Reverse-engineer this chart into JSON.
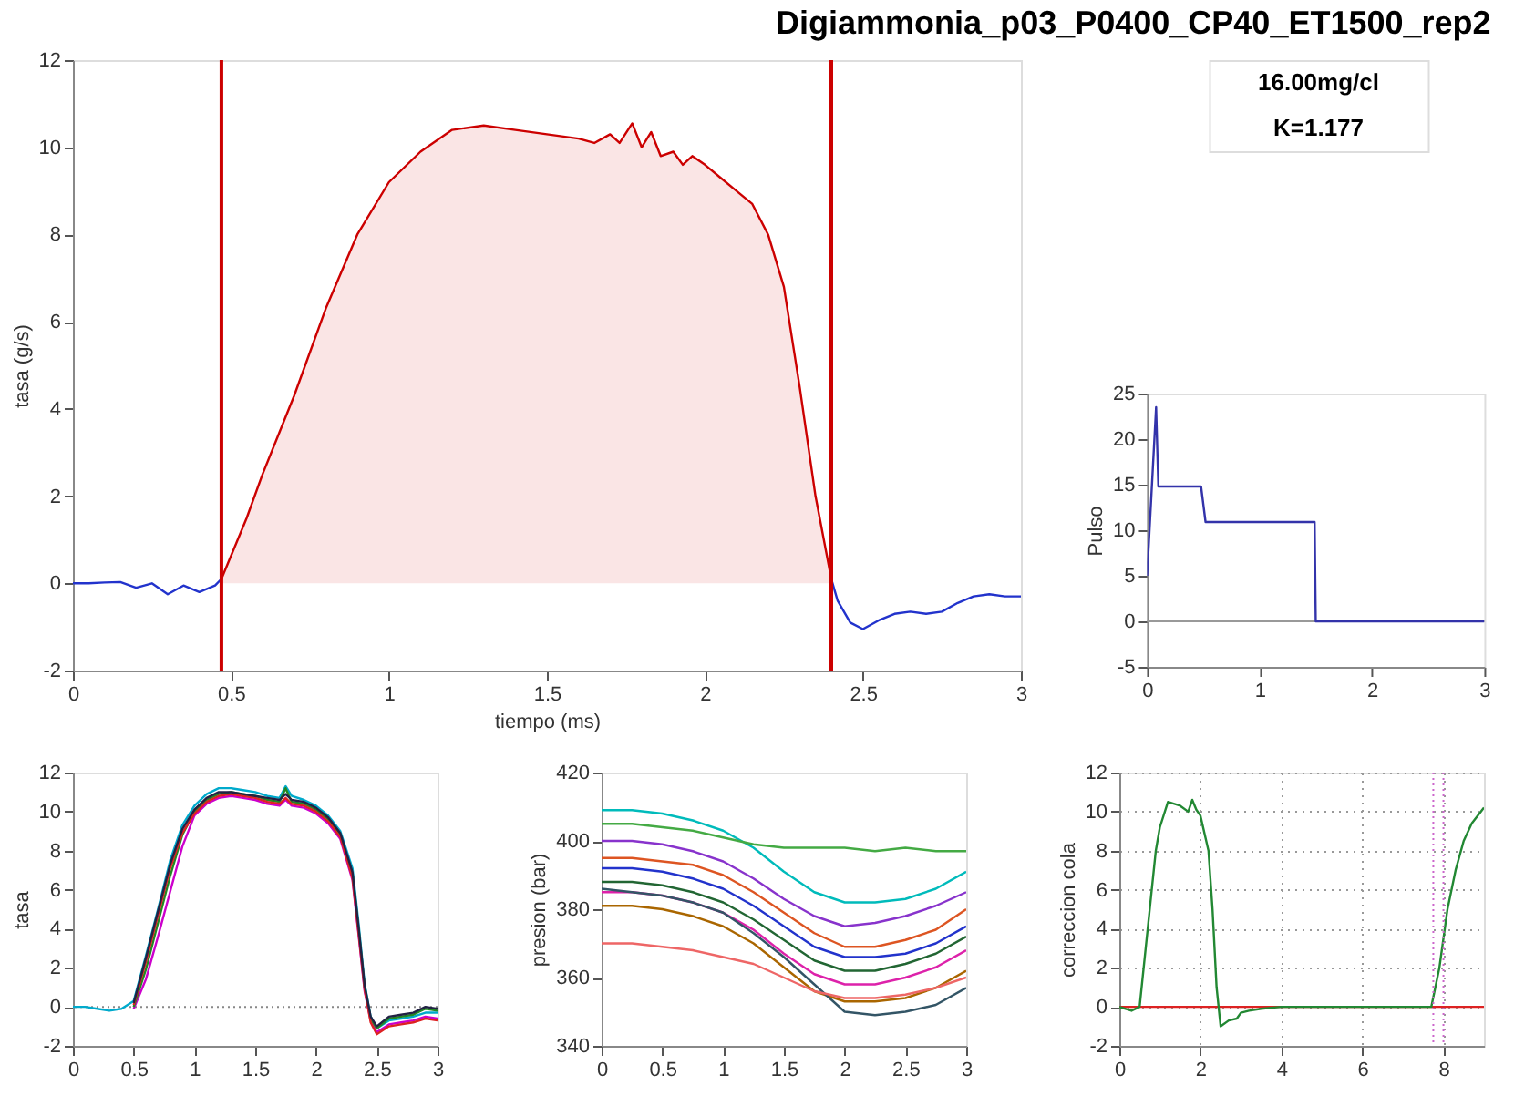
{
  "chart_data": [
    {
      "type": "line",
      "title": "Digiammonia_p03_P0400_CP40_ET1500_rep2",
      "xlabel": "tiempo (ms)",
      "ylabel": "tasa (g/s)",
      "xlim": [
        0,
        3
      ],
      "ylim": [
        -2,
        12
      ],
      "xticks": [
        0,
        0.5,
        1,
        1.5,
        2,
        2.5,
        3
      ],
      "yticks": [
        -2,
        0,
        2,
        4,
        6,
        8,
        10,
        12
      ],
      "grid": false,
      "annotations": [
        "16.00mg/cl",
        "K=1.177"
      ],
      "ref_lines": [
        {
          "axis": "x",
          "value": 0.47,
          "color": "#cc0000"
        },
        {
          "axis": "x",
          "value": 2.4,
          "color": "#cc0000"
        }
      ],
      "series": [
        {
          "type": "line",
          "color": "#2233cc",
          "x": [
            0,
            0.05,
            0.1,
            0.15,
            0.2,
            0.25,
            0.3,
            0.35,
            0.4,
            0.45,
            0.47,
            1.5,
            2.4,
            2.42,
            2.46,
            2.5,
            2.55,
            2.6,
            2.65,
            2.7,
            2.75,
            2.8,
            2.85,
            2.9,
            2.95,
            3
          ],
          "values": [
            0,
            0,
            0.02,
            0.03,
            -0.1,
            0,
            -0.25,
            -0.05,
            -0.2,
            -0.05,
            0.1,
            null,
            0.1,
            -0.4,
            -0.9,
            -1.05,
            -0.85,
            -0.7,
            -0.65,
            -0.7,
            -0.65,
            -0.45,
            -0.3,
            -0.25,
            -0.3,
            -0.3
          ]
        },
        {
          "type": "area",
          "color": "#cc0000",
          "x": [
            0.47,
            0.55,
            0.6,
            0.7,
            0.8,
            0.9,
            1.0,
            1.1,
            1.2,
            1.3,
            1.4,
            1.5,
            1.6,
            1.65,
            1.7,
            1.73,
            1.77,
            1.8,
            1.83,
            1.86,
            1.9,
            1.93,
            1.96,
            2.0,
            2.05,
            2.1,
            2.15,
            2.2,
            2.25,
            2.3,
            2.35,
            2.4
          ],
          "values": [
            0.1,
            1.5,
            2.5,
            4.3,
            6.3,
            8.0,
            9.2,
            9.9,
            10.4,
            10.5,
            10.4,
            10.3,
            10.2,
            10.1,
            10.3,
            10.1,
            10.55,
            10.0,
            10.35,
            9.8,
            9.9,
            9.6,
            9.8,
            9.6,
            9.3,
            9.0,
            8.7,
            8.0,
            6.8,
            4.5,
            2.0,
            0.1
          ]
        }
      ]
    },
    {
      "type": "line",
      "ylabel": "Pulso",
      "xlim": [
        0,
        3
      ],
      "ylim": [
        -5,
        25
      ],
      "xticks": [
        0,
        1,
        2,
        3
      ],
      "yticks": [
        -5,
        0,
        5,
        10,
        15,
        20,
        25
      ],
      "grid": false,
      "ref_lines": [
        {
          "axis": "y",
          "value": 0,
          "color": "#999999"
        }
      ],
      "series": [
        {
          "color": "#3333aa",
          "x": [
            0,
            0.08,
            0.1,
            0.48,
            0.52,
            1.49,
            1.5,
            3
          ],
          "values": [
            5,
            23.5,
            14.8,
            14.8,
            10.9,
            10.9,
            0,
            0
          ]
        }
      ]
    },
    {
      "type": "line",
      "ylabel": "tasa",
      "xlim": [
        0,
        3
      ],
      "ylim": [
        -2,
        12
      ],
      "xticks": [
        0,
        0.5,
        1,
        1.5,
        2,
        2.5,
        3
      ],
      "yticks": [
        -2,
        0,
        2,
        4,
        6,
        8,
        10,
        12
      ],
      "grid": false,
      "ref_lines": [
        {
          "axis": "y",
          "value": 0,
          "color": "#888888",
          "line_style": "dotted"
        }
      ],
      "x": [
        0,
        0.1,
        0.2,
        0.3,
        0.4,
        0.5,
        0.6,
        0.7,
        0.8,
        0.9,
        1.0,
        1.1,
        1.2,
        1.3,
        1.4,
        1.5,
        1.6,
        1.7,
        1.75,
        1.8,
        1.9,
        2.0,
        2.1,
        2.2,
        2.3,
        2.35,
        2.4,
        2.45,
        2.5,
        2.6,
        2.7,
        2.8,
        2.9,
        3.0
      ],
      "series": [
        {
          "color": "#00aacc",
          "values": [
            0,
            0,
            -0.1,
            -0.2,
            -0.1,
            0.3,
            2.6,
            5.0,
            7.5,
            9.3,
            10.3,
            10.9,
            11.2,
            11.2,
            11.1,
            11.0,
            10.8,
            10.7,
            11.3,
            10.8,
            10.6,
            10.3,
            9.8,
            9.0,
            7.1,
            4.3,
            1.2,
            -0.5,
            -1.1,
            -0.7,
            -0.6,
            -0.5,
            -0.3,
            -0.3
          ]
        },
        {
          "color": "#cc00cc",
          "values": [
            null,
            null,
            null,
            null,
            null,
            -0.1,
            1.4,
            3.6,
            5.9,
            8.2,
            9.8,
            10.4,
            10.7,
            10.8,
            10.7,
            10.6,
            10.4,
            10.3,
            10.6,
            10.3,
            10.2,
            9.9,
            9.4,
            8.6,
            6.5,
            3.7,
            0.8,
            -0.7,
            -1.3,
            -0.9,
            -0.8,
            -0.7,
            -0.5,
            -0.6
          ]
        },
        {
          "color": "#228822",
          "values": [
            null,
            null,
            null,
            null,
            null,
            0.0,
            1.9,
            4.3,
            6.7,
            8.8,
            10.0,
            10.6,
            10.9,
            11.0,
            10.9,
            10.8,
            10.6,
            10.5,
            11.2,
            10.5,
            10.4,
            10.1,
            9.6,
            8.8,
            6.8,
            4.0,
            1.0,
            -0.6,
            -1.1,
            -0.6,
            -0.5,
            -0.4,
            -0.1,
            -0.2
          ]
        },
        {
          "color": "#dd2222",
          "values": [
            null,
            null,
            null,
            null,
            null,
            0.1,
            2.3,
            4.7,
            7.1,
            8.9,
            9.9,
            10.5,
            10.8,
            10.9,
            10.8,
            10.7,
            10.5,
            10.4,
            10.7,
            10.4,
            10.3,
            10.0,
            9.5,
            8.7,
            6.6,
            3.8,
            0.9,
            -0.8,
            -1.4,
            -1.0,
            -0.9,
            -0.8,
            -0.6,
            -0.7
          ]
        },
        {
          "color": "#222244",
          "values": [
            null,
            null,
            null,
            null,
            null,
            0.2,
            2.5,
            4.9,
            7.3,
            9.1,
            10.1,
            10.7,
            11.0,
            11.0,
            10.9,
            10.8,
            10.7,
            10.6,
            10.9,
            10.6,
            10.5,
            10.2,
            9.7,
            8.9,
            6.9,
            4.1,
            1.1,
            -0.5,
            -1.0,
            -0.5,
            -0.4,
            -0.3,
            0,
            -0.1
          ]
        }
      ]
    },
    {
      "type": "line",
      "ylabel": "presion (bar)",
      "xlim": [
        0,
        3
      ],
      "ylim": [
        340,
        420
      ],
      "xticks": [
        0,
        0.5,
        1,
        1.5,
        2,
        2.5,
        3
      ],
      "yticks": [
        340,
        360,
        380,
        400,
        420
      ],
      "grid": false,
      "x": [
        0,
        0.25,
        0.5,
        0.75,
        1,
        1.25,
        1.5,
        1.75,
        2,
        2.25,
        2.5,
        2.75,
        3
      ],
      "series": [
        {
          "color": "#00bbbb",
          "values": [
            409,
            409,
            408,
            406,
            403,
            398,
            391,
            385,
            382,
            382,
            383,
            386,
            391
          ]
        },
        {
          "color": "#44aa44",
          "values": [
            405,
            405,
            404,
            403,
            401,
            399,
            398,
            398,
            398,
            397,
            398,
            397,
            397
          ]
        },
        {
          "color": "#8833cc",
          "values": [
            400,
            400,
            399,
            397,
            394,
            389,
            383,
            378,
            375,
            376,
            378,
            381,
            385
          ]
        },
        {
          "color": "#dd5522",
          "values": [
            395,
            395,
            394,
            393,
            390,
            385,
            379,
            373,
            369,
            369,
            371,
            374,
            380
          ]
        },
        {
          "color": "#2233cc",
          "values": [
            392,
            392,
            391,
            389,
            386,
            381,
            375,
            369,
            366,
            366,
            367,
            370,
            375
          ]
        },
        {
          "color": "#226633",
          "values": [
            388,
            388,
            387,
            385,
            382,
            377,
            371,
            365,
            362,
            362,
            364,
            367,
            372
          ]
        },
        {
          "color": "#dd22aa",
          "values": [
            385,
            385,
            384,
            382,
            379,
            374,
            367,
            361,
            358,
            358,
            360,
            363,
            368
          ]
        },
        {
          "color": "#aa6600",
          "values": [
            381,
            381,
            380,
            378,
            375,
            370,
            363,
            356,
            353,
            353,
            354,
            357,
            362
          ]
        },
        {
          "color": "#335566",
          "values": [
            386,
            385,
            384,
            382,
            379,
            373,
            366,
            358,
            350,
            349,
            350,
            352,
            357
          ]
        },
        {
          "color": "#ee6666",
          "values": [
            370,
            370,
            369,
            368,
            366,
            364,
            360,
            356,
            354,
            354,
            355,
            357,
            360
          ]
        }
      ]
    },
    {
      "type": "line",
      "ylabel": "correccion cola",
      "xlim": [
        0,
        9
      ],
      "ylim": [
        -2,
        12
      ],
      "xticks": [
        0,
        2,
        4,
        6,
        8
      ],
      "yticks": [
        -2,
        0,
        2,
        4,
        6,
        8,
        10,
        12
      ],
      "grid": true,
      "ref_lines": [
        {
          "axis": "x",
          "value": 7.75,
          "color": "#cc66cc",
          "line_style": "dotted"
        },
        {
          "axis": "x",
          "value": 8.0,
          "color": "#cc66cc",
          "line_style": "dotted"
        }
      ],
      "series": [
        {
          "color": "#dd2222",
          "x": [
            0,
            9
          ],
          "values": [
            0,
            0
          ]
        },
        {
          "color": "#228833",
          "x": [
            0,
            0.3,
            0.5,
            0.7,
            0.9,
            1.0,
            1.2,
            1.5,
            1.7,
            1.8,
            1.9,
            2.0,
            2.2,
            2.3,
            2.4,
            2.5,
            2.7,
            2.9,
            3.0,
            3.2,
            3.5,
            4,
            5,
            6,
            7,
            7.7,
            7.9,
            8.1,
            8.3,
            8.5,
            8.7,
            9.0
          ],
          "values": [
            0,
            -0.2,
            0,
            4,
            8,
            9.2,
            10.5,
            10.3,
            10.0,
            10.6,
            10.1,
            9.8,
            8.0,
            5,
            1,
            -1,
            -0.7,
            -0.6,
            -0.3,
            -0.2,
            -0.1,
            0,
            0,
            0,
            0,
            0,
            2,
            5,
            7,
            8.5,
            9.4,
            10.2
          ]
        }
      ]
    }
  ]
}
